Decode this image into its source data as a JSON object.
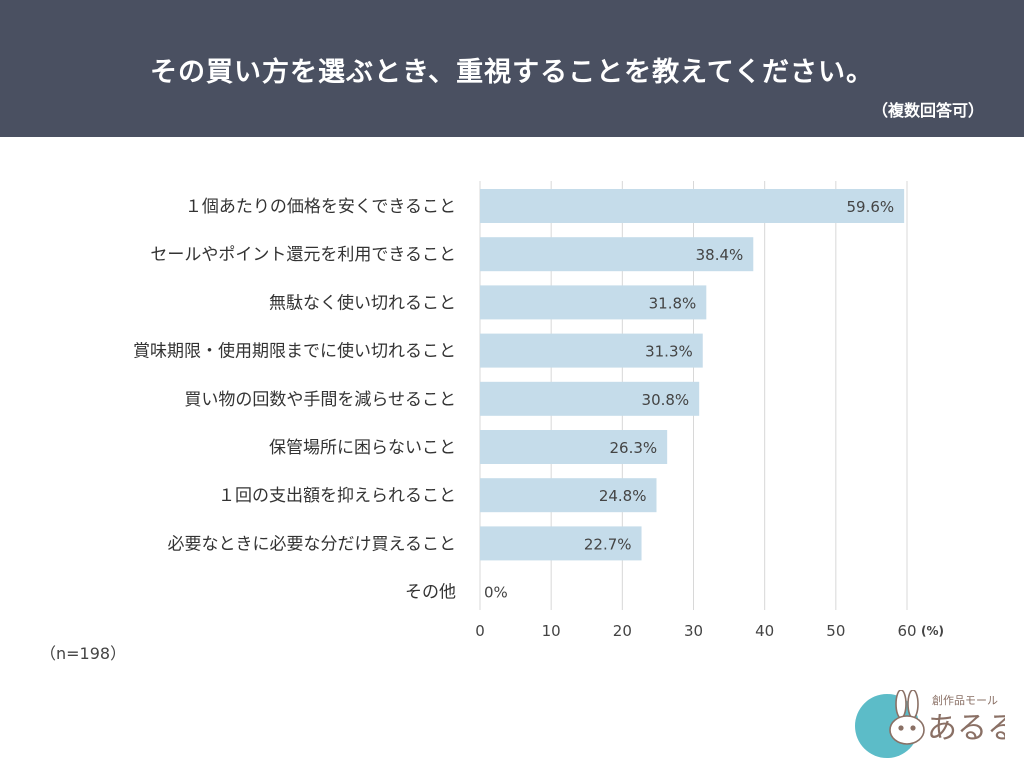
{
  "header": {
    "title": "その買い方を選ぶとき、重視することを教えてください。",
    "subtitle": "（複数回答可）"
  },
  "sample_note": "（n=198）",
  "logo": {
    "text": "あるる",
    "tagline": "創作品モール",
    "icon": "rabbit-icon"
  },
  "colors": {
    "header_bg": "#4a5061",
    "bar": "#c5dcea",
    "grid": "#d8d8d8",
    "logo_circle": "#5cbcc8",
    "logo_text": "#8a7065"
  },
  "chart_data": {
    "type": "bar",
    "orientation": "horizontal",
    "categories": [
      "１個あたりの価格を安くできること",
      "セールやポイント還元を利用できること",
      "無駄なく使い切れること",
      "賞味期限・使用期限までに使い切れること",
      "買い物の回数や手間を減らせること",
      "保管場所に困らないこと",
      "１回の支出額を抑えられること",
      "必要なときに必要な分だけ買えること",
      "その他"
    ],
    "values": [
      59.6,
      38.4,
      31.8,
      31.3,
      30.8,
      26.3,
      24.8,
      22.7,
      0
    ],
    "value_labels": [
      "59.6%",
      "38.4%",
      "31.8%",
      "31.3%",
      "30.8%",
      "26.3%",
      "24.8%",
      "22.7%",
      "0%"
    ],
    "xticks": [
      0,
      10,
      20,
      30,
      40,
      50,
      60
    ],
    "xlim": [
      0,
      60
    ],
    "unit": "(%)",
    "grid": true,
    "legend": false
  }
}
